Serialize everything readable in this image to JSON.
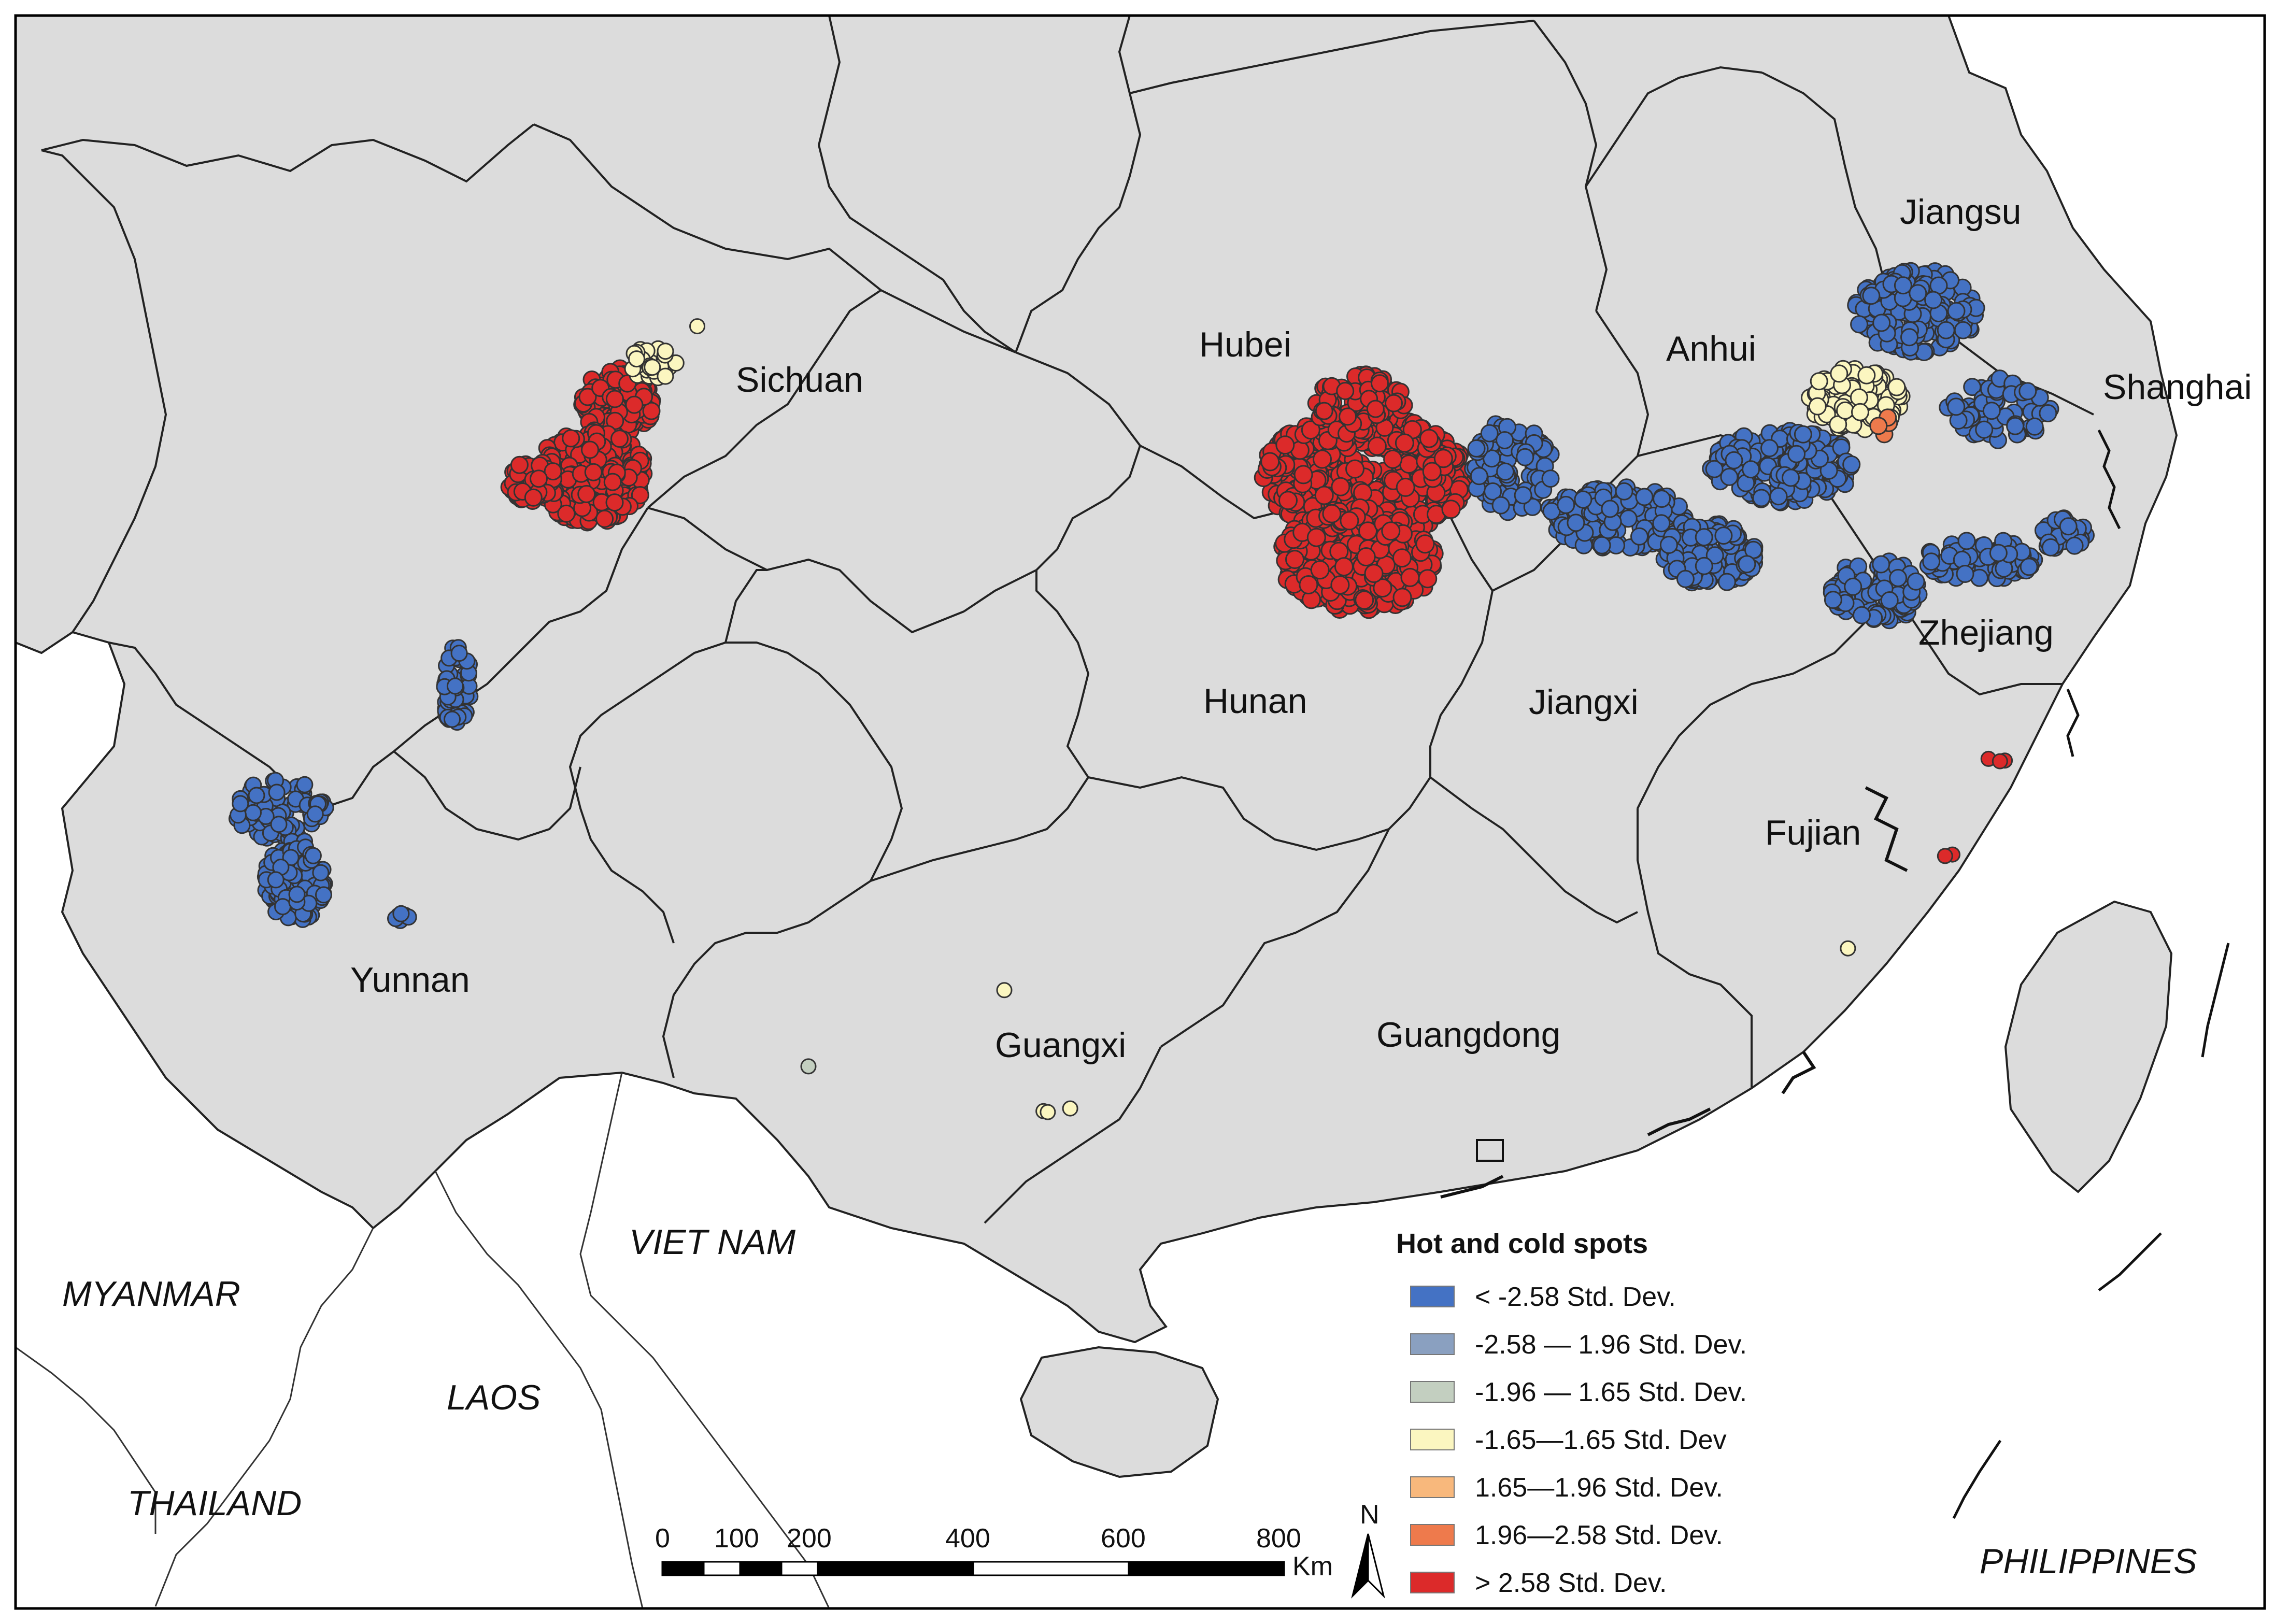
{
  "provinces": [
    {
      "name": "Sichuan"
    },
    {
      "name": "Hubei"
    },
    {
      "name": "Anhui"
    },
    {
      "name": "Jiangsu"
    },
    {
      "name": "Shanghai"
    },
    {
      "name": "Zhejiang"
    },
    {
      "name": "Jiangxi"
    },
    {
      "name": "Hunan"
    },
    {
      "name": "Fujian"
    },
    {
      "name": "Guangdong"
    },
    {
      "name": "Guangxi"
    },
    {
      "name": "Yunnan"
    }
  ],
  "countries": [
    {
      "name": "VIET NAM"
    },
    {
      "name": "MYANMAR"
    },
    {
      "name": "LAOS"
    },
    {
      "name": "THAILAND"
    },
    {
      "name": "PHILIPPINES"
    }
  ],
  "legend": {
    "title": "Hot and cold spots",
    "items": [
      {
        "label": "< -2.58 Std. Dev.",
        "color": "#4472c4"
      },
      {
        "label": "-2.58 — 1.96 Std. Dev.",
        "color": "#8aa0c0"
      },
      {
        "label": "-1.96 — 1.65 Std. Dev.",
        "color": "#c3cfc0"
      },
      {
        "label": "-1.65—1.65 Std. Dev",
        "color": "#fbf6c0"
      },
      {
        "label": "1.65—1.96 Std. Dev.",
        "color": "#f8b87c"
      },
      {
        "label": "1.96—2.58 Std. Dev.",
        "color": "#ee7a4c"
      },
      {
        "label": "> 2.58 Std. Dev.",
        "color": "#dc2a2a"
      }
    ]
  },
  "scale_bar": {
    "ticks": [
      "0",
      "100",
      "200",
      "400",
      "600",
      "800"
    ],
    "unit": "Km"
  },
  "north_arrow": {
    "label": "N"
  },
  "colors": {
    "land": "#dcdcdc",
    "cold": "#4472c4",
    "hot": "#dc2a2a",
    "neutral": "#fbf6c0",
    "hot_light": "#ee7a4c",
    "grey_blue": "#8aa0c0",
    "grey_green": "#c3cfc0"
  }
}
